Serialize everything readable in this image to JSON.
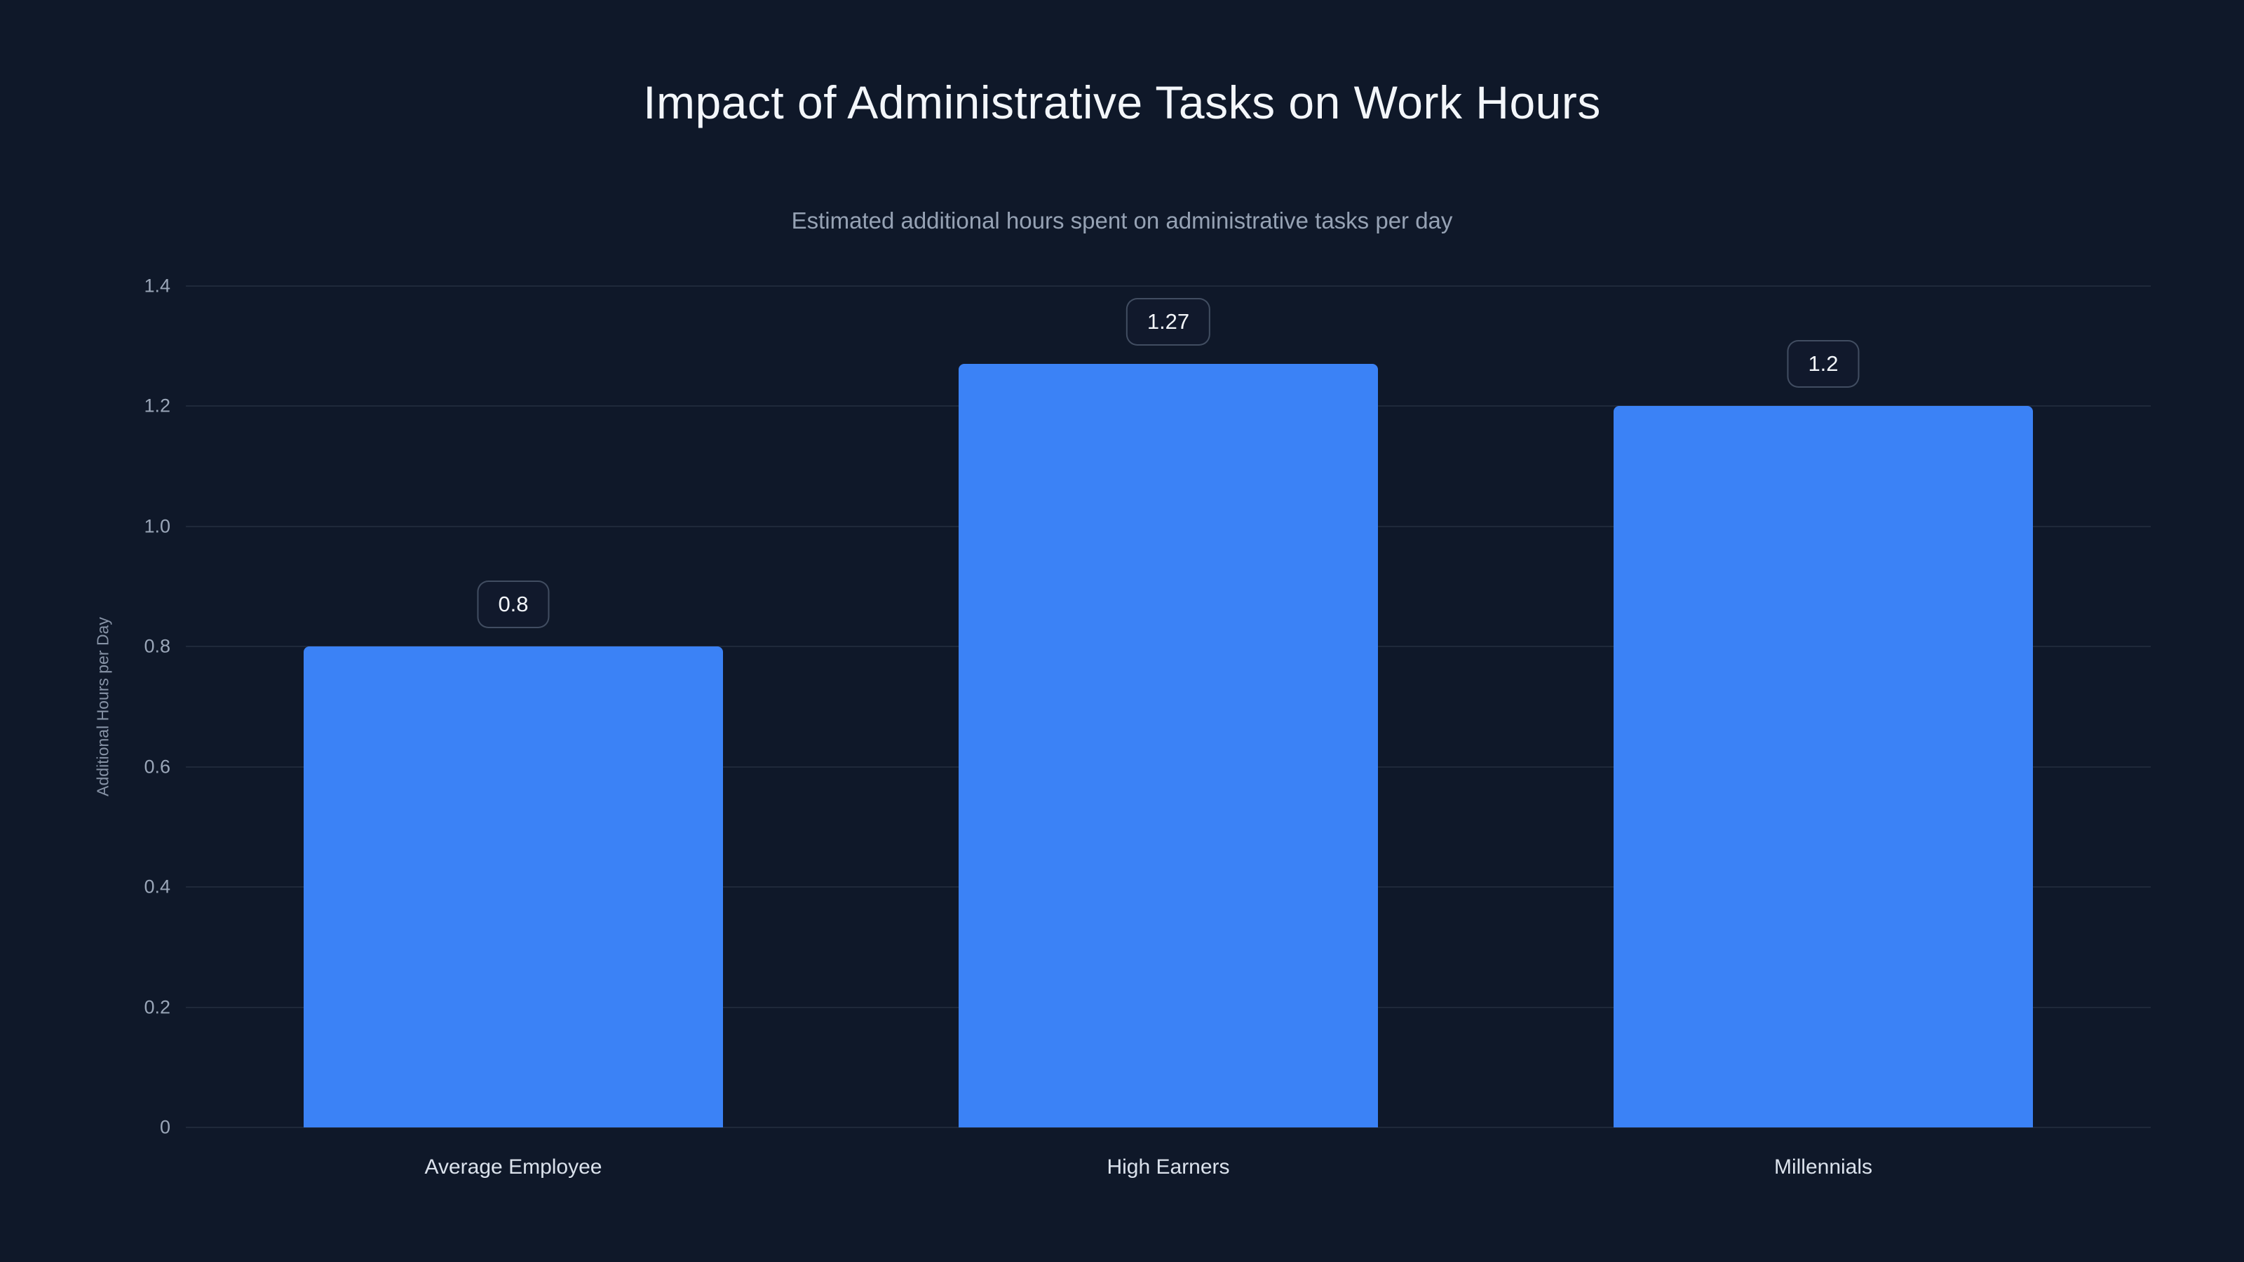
{
  "page": {
    "title": "Impact of Administrative Tasks on Work Hours",
    "subtitle": "Estimated additional hours spent on administrative tasks per day"
  },
  "chart_data": {
    "type": "bar",
    "title": "Impact of Administrative Tasks on Work Hours",
    "subtitle": "Estimated additional hours spent on administrative tasks per day",
    "categories": [
      "Average Employee",
      "High Earners",
      "Millennials"
    ],
    "values": [
      0.8,
      1.27,
      1.2
    ],
    "value_labels": [
      "0.8",
      "1.27",
      "1.2"
    ],
    "xlabel": "",
    "ylabel": "Additional Hours per Day",
    "ylim": [
      0,
      1.4
    ],
    "yticks": [
      0,
      0.2,
      0.4,
      0.6,
      0.8,
      1.0,
      1.2,
      1.4
    ],
    "ytick_labels": [
      "0",
      "0.2",
      "0.4",
      "0.6",
      "0.8",
      "1.0",
      "1.2",
      "1.4"
    ],
    "grid": "horizontal",
    "legend": "none",
    "bar_color": "#3b82f6",
    "background_color": "#0f1829"
  }
}
